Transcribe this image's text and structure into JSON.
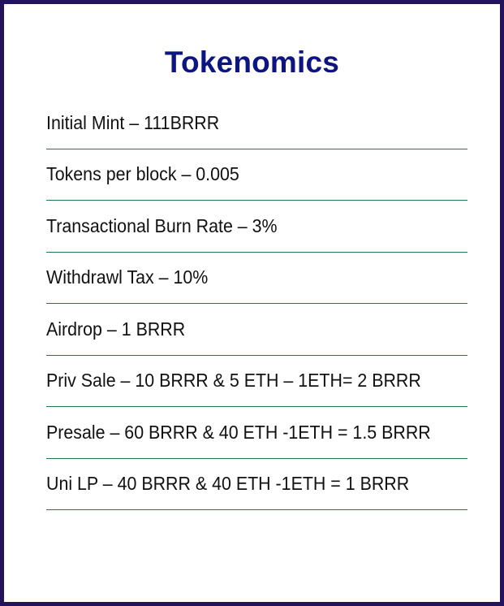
{
  "title": "Tokenomics",
  "items": [
    "Initial Mint – 111BRRR",
    "Tokens per block – 0.005",
    "Transactional Burn Rate – 3%",
    "Withdrawl Tax – 10%",
    "Airdrop – 1 BRRR",
    "Priv Sale – 10 BRRR & 5 ETH – 1ETH= 2 BRRR",
    "Presale – 60 BRRR & 40 ETH -1ETH = 1.5 BRRR",
    "Uni LP – 40 BRRR & 40 ETH -1ETH = 1 BRRR"
  ],
  "colors": {
    "border": "#22135a",
    "title": "#0d1580",
    "divider": "#1f7a4a",
    "text": "#111111"
  }
}
